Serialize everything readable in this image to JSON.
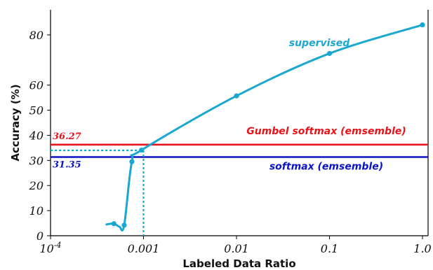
{
  "chart_data": {
    "type": "line",
    "xscale": "log",
    "xlabel": "Labeled Data Ratio",
    "ylabel": "Accuracy (%)",
    "xlim": [
      0.0001,
      1.0
    ],
    "ylim": [
      0,
      90
    ],
    "x_ticks": [
      {
        "value": 0.0001,
        "label": "10",
        "sup": "-4"
      },
      {
        "value": 0.001,
        "label": "0.001"
      },
      {
        "value": 0.01,
        "label": "0.01"
      },
      {
        "value": 0.1,
        "label": "0.1"
      },
      {
        "value": 1.0,
        "label": "1.0"
      }
    ],
    "y_ticks": [
      0,
      10,
      20,
      30,
      40,
      50,
      60,
      80
    ],
    "series": [
      {
        "name": "supervised",
        "color": "#1aa7d0",
        "x": [
          0.0004,
          0.00048,
          0.00055,
          0.00062,
          0.00075,
          0.00095,
          0.01,
          0.1,
          1.0
        ],
        "y": [
          4.5,
          4.8,
          3.6,
          4.2,
          29.5,
          34.1,
          55.7,
          72.6,
          84.0
        ],
        "markers_at": [
          1,
          3,
          4,
          5,
          6,
          7,
          8
        ]
      }
    ],
    "reference_lines": [
      {
        "name": "Gumbel softmax (emsemble)",
        "value": 36.27,
        "value_label": "36.27",
        "color": "#e8141c"
      },
      {
        "name": "softmax (emsemble)",
        "value": 31.35,
        "value_label": "31.35",
        "color": "#0a14c4"
      }
    ],
    "crosshair": {
      "x": 0.001,
      "y": 34.0,
      "color": "#1aa7d0"
    },
    "annotations": {
      "series_label": "supervised",
      "series_label_color": "#1aa7d0"
    }
  }
}
